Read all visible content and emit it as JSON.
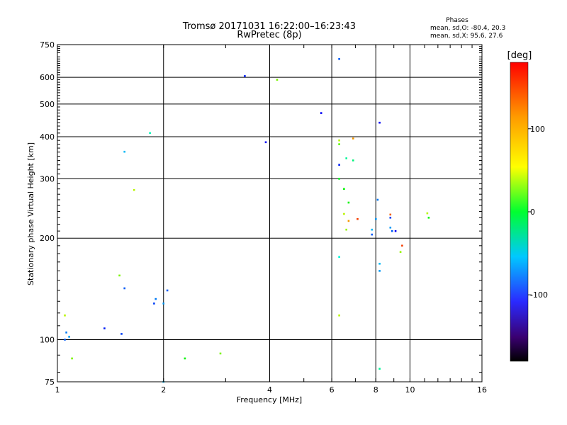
{
  "chart_data": {
    "type": "scatter",
    "title": "Tromsø 20171031 16:22:00–16:23:43",
    "subtitle": "RwPretec (8p)",
    "xlabel": "Frequency [MHz]",
    "ylabel": "Stationary phase Virtual Height [km]",
    "x_scale": "log",
    "y_scale": "log",
    "xlim": [
      1,
      16
    ],
    "ylim": [
      75,
      750
    ],
    "x_ticks": [
      1,
      2,
      4,
      6,
      8,
      10,
      16
    ],
    "y_ticks": [
      75,
      100,
      200,
      300,
      400,
      500,
      600,
      750
    ],
    "grid": true,
    "stats": {
      "heading": "Phases",
      "line_o": "mean, sd,O: -80.4, 20.3",
      "line_x": "mean, sd,X:  95.6, 27.6"
    },
    "colorbar": {
      "label": "[deg]",
      "range": [
        -180,
        180
      ],
      "ticks": [
        100,
        0,
        -100
      ]
    },
    "points": [
      [
        1.05,
        100,
        -110
      ],
      [
        1.06,
        105,
        -100
      ],
      [
        1.08,
        102,
        -90
      ],
      [
        1.05,
        118,
        80
      ],
      [
        1.1,
        88,
        60
      ],
      [
        1.36,
        108,
        -130
      ],
      [
        1.5,
        155,
        60
      ],
      [
        1.52,
        104,
        -120
      ],
      [
        1.55,
        142,
        -110
      ],
      [
        1.55,
        361,
        -80
      ],
      [
        1.83,
        410,
        -40
      ],
      [
        1.65,
        278,
        80
      ],
      [
        1.88,
        128,
        -120
      ],
      [
        1.9,
        132,
        -100
      ],
      [
        2.0,
        128,
        -90
      ],
      [
        2.05,
        140,
        -110
      ],
      [
        2.0,
        75,
        -80
      ],
      [
        2.3,
        88,
        20
      ],
      [
        2.9,
        91,
        60
      ],
      [
        4.2,
        590,
        60
      ],
      [
        3.4,
        605,
        -130
      ],
      [
        3.9,
        385,
        -140
      ],
      [
        5.6,
        470,
        -140
      ],
      [
        6.3,
        680,
        -110
      ],
      [
        8.2,
        440,
        -140
      ],
      [
        8.1,
        260,
        -100
      ],
      [
        8.2,
        168,
        -80
      ],
      [
        8.2,
        160,
        -90
      ],
      [
        8.2,
        82,
        -30
      ],
      [
        6.3,
        118,
        80
      ],
      [
        6.3,
        176,
        -50
      ],
      [
        6.3,
        300,
        10
      ],
      [
        6.3,
        330,
        -130
      ],
      [
        6.3,
        380,
        50
      ],
      [
        6.3,
        390,
        80
      ],
      [
        6.9,
        395,
        130
      ],
      [
        6.6,
        345,
        -30
      ],
      [
        6.9,
        340,
        -20
      ],
      [
        6.7,
        255,
        20
      ],
      [
        6.5,
        280,
        20
      ],
      [
        6.7,
        225,
        130
      ],
      [
        6.6,
        212,
        70
      ],
      [
        8.8,
        215,
        -90
      ],
      [
        8.9,
        210,
        -110
      ],
      [
        9.1,
        210,
        -140
      ],
      [
        9.5,
        190,
        160
      ],
      [
        9.4,
        182,
        70
      ],
      [
        11.2,
        237,
        80
      ],
      [
        11.3,
        230,
        20
      ],
      [
        8.8,
        230,
        -120
      ],
      [
        8.8,
        235,
        150
      ],
      [
        8.0,
        228,
        -90
      ],
      [
        7.8,
        205,
        -110
      ],
      [
        7.8,
        212,
        -80
      ],
      [
        7.1,
        228,
        160
      ],
      [
        6.5,
        236,
        80
      ]
    ]
  }
}
